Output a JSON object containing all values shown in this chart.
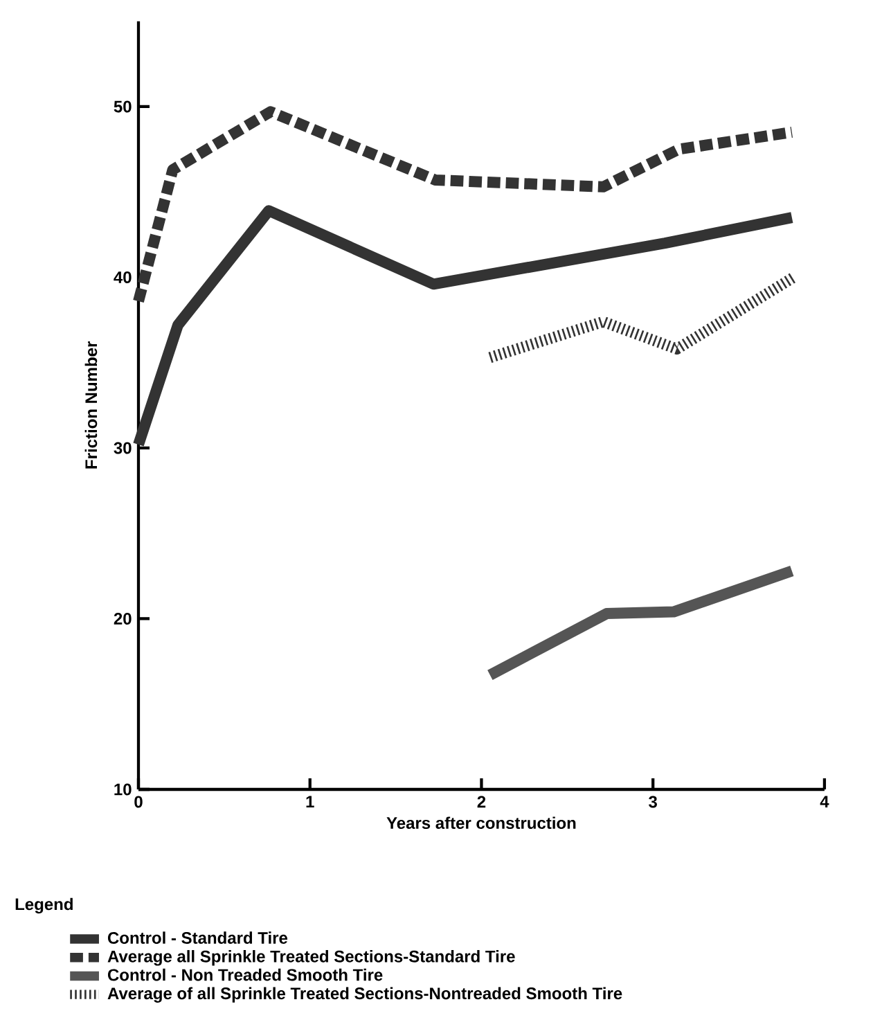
{
  "chart_data": {
    "type": "line",
    "xlabel": "Years after construction",
    "ylabel": "Friction Number",
    "legend_title": "Legend",
    "legend": "bottom left",
    "grid": false,
    "xlim": [
      0,
      4
    ],
    "ylim": [
      10,
      55
    ],
    "xticks": [
      0,
      1,
      2,
      3,
      4
    ],
    "yticks": [
      10,
      20,
      30,
      40,
      50
    ],
    "series": [
      {
        "name": "Control - Standard Tire",
        "color": "#333333",
        "line_style": "solid",
        "x": [
          0,
          0.23,
          0.76,
          1.72,
          3.07,
          3.81
        ],
        "values": [
          30.2,
          37.2,
          43.9,
          39.6,
          42,
          43.5
        ]
      },
      {
        "name": "Average all Sprinkle Treated Sections-Standard Tire",
        "color": "#333333",
        "line_style": "dashed",
        "x": [
          0,
          0.2,
          0.77,
          1.73,
          2.71,
          3.15,
          3.81
        ],
        "values": [
          38.6,
          46.3,
          49.7,
          45.7,
          45.3,
          47.5,
          48.5
        ]
      },
      {
        "name": "Control - Non Treaded Smooth Tire",
        "color": "#555555",
        "line_style": "solid",
        "x": [
          2.05,
          2.73,
          3.12,
          3.81
        ],
        "values": [
          16.7,
          20.3,
          20.4,
          22.8
        ]
      },
      {
        "name": "Average of all Sprinkle Treated Sections-Nontreaded Smooth Tire",
        "color": "#333333",
        "line_style": "dotted",
        "x": [
          2.05,
          2.71,
          3.14,
          3.82
        ],
        "values": [
          35.3,
          37.4,
          35.8,
          40.0
        ]
      }
    ]
  }
}
